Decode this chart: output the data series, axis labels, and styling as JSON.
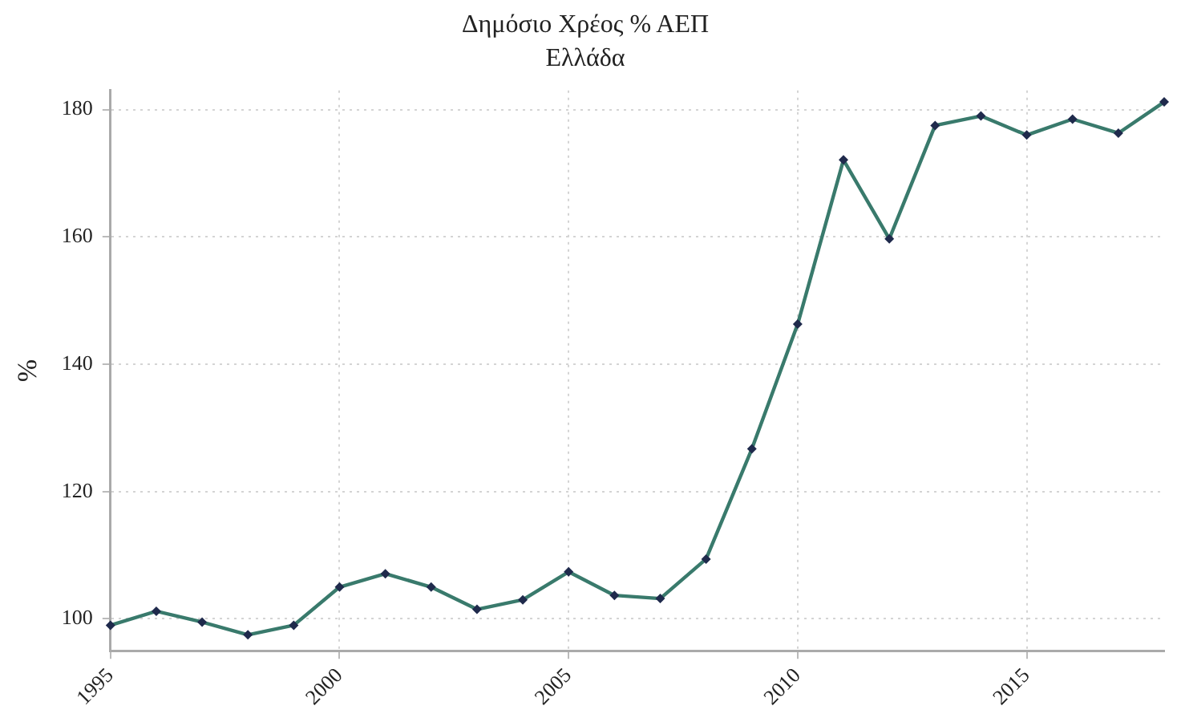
{
  "chart_data": {
    "type": "line",
    "title": "Δημόσιο Χρέος % ΑΕΠ",
    "subtitle": "Ελλάδα",
    "ylabel": "%",
    "x": [
      1995,
      1996,
      1997,
      1998,
      1999,
      2000,
      2001,
      2002,
      2003,
      2004,
      2005,
      2006,
      2007,
      2008,
      2009,
      2010,
      2011,
      2012,
      2013,
      2014,
      2015,
      2016,
      2017,
      2018
    ],
    "series": [
      {
        "color": "#397a6c",
        "values": [
          99.0,
          101.2,
          99.5,
          97.5,
          99.0,
          105.0,
          107.1,
          105.0,
          101.5,
          103.0,
          107.4,
          103.7,
          103.2,
          109.4,
          126.7,
          146.3,
          172.1,
          159.7,
          177.5,
          179.0,
          176.0,
          178.5,
          176.3,
          181.2
        ]
      }
    ],
    "xlim": [
      1995,
      2018
    ],
    "xticks": [
      1995,
      2000,
      2005,
      2010,
      2015
    ],
    "ylim": [
      95,
      183
    ],
    "yticks": [
      100,
      120,
      140,
      160,
      180
    ],
    "grid": true,
    "legend": false,
    "marker": "diamond",
    "line_style": "solid"
  }
}
